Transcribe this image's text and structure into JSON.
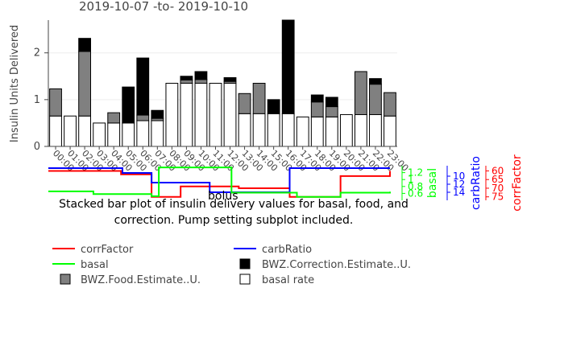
{
  "chart_data": {
    "type": "bar",
    "title": "2019-10-07 -to- 2019-10-10",
    "ylabel": "Insulin Units Delivered",
    "ylim": [
      0,
      2.7
    ],
    "yticks": [
      0,
      1,
      2
    ],
    "categories": [
      "00:00",
      "01:00",
      "02:00",
      "03:00",
      "04:00",
      "05:00",
      "06:00",
      "07:00",
      "08:00",
      "09:00",
      "10:00",
      "11:00",
      "12:00",
      "13:00",
      "14:00",
      "15:00",
      "16:00",
      "17:00",
      "18:00",
      "19:00",
      "20:00",
      "21:00",
      "22:00",
      "23:00"
    ],
    "series": [
      {
        "name": "basal rate",
        "color": "#ffffff",
        "values": [
          0.65,
          0.65,
          0.65,
          0.5,
          0.5,
          0.5,
          0.55,
          0.55,
          1.35,
          1.35,
          1.35,
          1.35,
          1.35,
          0.7,
          0.7,
          0.7,
          0.7,
          0.63,
          0.63,
          0.63,
          0.68,
          0.68,
          0.68,
          0.65
        ]
      },
      {
        "name": "BWZ.Food.Estimate..U.",
        "color": "#808080",
        "values": [
          0.58,
          0,
          1.38,
          0,
          0.22,
          0,
          0.12,
          0.05,
          0,
          0.07,
          0.08,
          0,
          0.04,
          0.43,
          0.65,
          0,
          0,
          0,
          0.32,
          0.22,
          0,
          0.92,
          0.65,
          0.5
        ]
      },
      {
        "name": "BWZ.Correction.Estimate..U.",
        "color": "#000000",
        "values": [
          0,
          0,
          0.28,
          0,
          0,
          0.77,
          1.22,
          0.17,
          0,
          0.08,
          0.17,
          0,
          0.08,
          0,
          0,
          0.3,
          2.0,
          0,
          0.15,
          0.2,
          0,
          0,
          0.12,
          0
        ]
      }
    ],
    "caption": "Stacked bar plot of insulin delivery values for basal, food, and correction. Pump setting subplot included.",
    "settings_subplot": {
      "x_range": [
        0,
        24
      ],
      "lines": [
        {
          "name": "corrFactor",
          "color": "#ff0000",
          "axis_label": "corrFactor",
          "axis_ticks": [
            "60",
            "65",
            "70",
            "75"
          ],
          "axis_range": [
            57,
            77
          ],
          "steps": [
            [
              0,
              60
            ],
            [
              4,
              60
            ],
            [
              5,
              62
            ],
            [
              7,
              62
            ],
            [
              7.1,
              75
            ],
            [
              9,
              75
            ],
            [
              9.1,
              69
            ],
            [
              13,
              69
            ],
            [
              13.1,
              70
            ],
            [
              16.5,
              70
            ],
            [
              16.6,
              75
            ],
            [
              20,
              75
            ],
            [
              20.1,
              63
            ],
            [
              22.5,
              63
            ],
            [
              23.5,
              60
            ]
          ]
        },
        {
          "name": "carbRatio",
          "color": "#0000ff",
          "axis_label": "carbRatio",
          "axis_ticks": [
            "10",
            "12",
            "14"
          ],
          "axis_range": [
            7.4,
            16
          ],
          "steps": [
            [
              0,
              8
            ],
            [
              5,
              8
            ],
            [
              5.1,
              9.2
            ],
            [
              7,
              9.2
            ],
            [
              7.1,
              11.6
            ],
            [
              11,
              11.6
            ],
            [
              11.1,
              14
            ],
            [
              16.5,
              14
            ],
            [
              16.6,
              8
            ],
            [
              23.5,
              8
            ]
          ]
        },
        {
          "name": "basal",
          "color": "#00ff00",
          "axis_label": "basal",
          "axis_ticks": [
            "1.2",
            "1",
            "0.8",
            "0.6"
          ],
          "axis_range": [
            0.4,
            1.4
          ],
          "steps": [
            [
              0,
              0.66
            ],
            [
              3,
              0.66
            ],
            [
              3.1,
              0.58
            ],
            [
              7,
              0.58
            ],
            [
              7.1,
              0.52
            ],
            [
              7.5,
              0.52
            ],
            [
              7.6,
              1.35
            ],
            [
              12.5,
              1.35
            ],
            [
              12.6,
              0.62
            ],
            [
              17,
              0.62
            ],
            [
              17.1,
              0.5
            ],
            [
              20,
              0.5
            ],
            [
              20.1,
              0.62
            ],
            [
              23.5,
              0.65
            ]
          ]
        }
      ],
      "overlay_text": "bolus"
    },
    "legend": [
      {
        "name": "corrFactor",
        "kind": "line",
        "color": "#ff0000"
      },
      {
        "name": "carbRatio",
        "kind": "line",
        "color": "#0000ff"
      },
      {
        "name": "basal",
        "kind": "line",
        "color": "#00ff00"
      },
      {
        "name": "BWZ.Correction.Estimate..U.",
        "kind": "box",
        "color": "#000000"
      },
      {
        "name": "BWZ.Food.Estimate..U.",
        "kind": "box",
        "color": "#808080"
      },
      {
        "name": "basal rate",
        "kind": "box",
        "color": "#ffffff"
      }
    ]
  }
}
